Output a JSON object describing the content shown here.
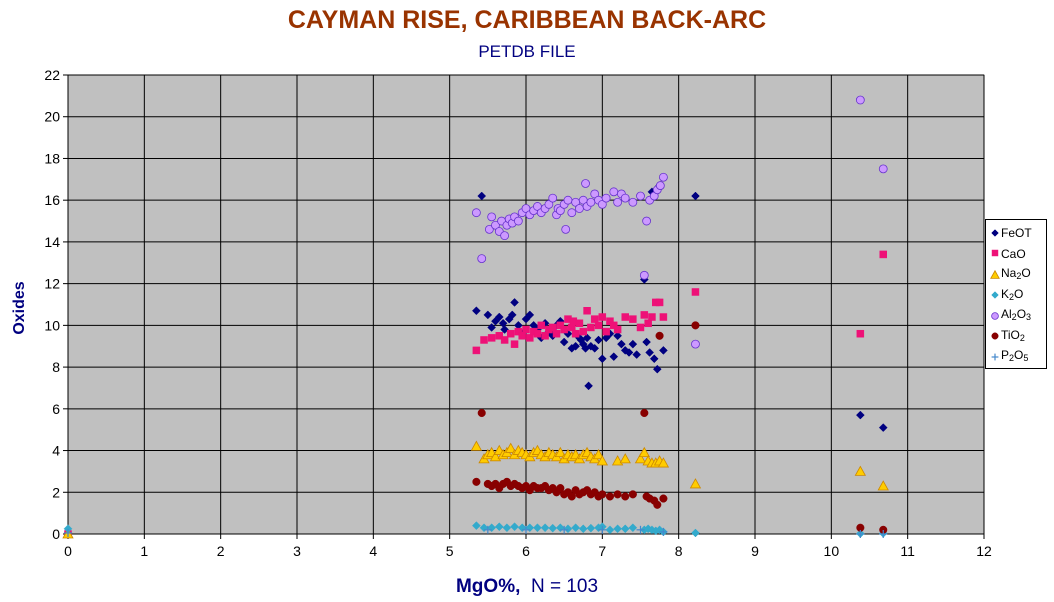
{
  "chart_data": {
    "type": "scatter",
    "title": "CAYMAN RISE, CARIBBEAN BACK-ARC",
    "subtitle": "PETDB FILE",
    "xlabel_main": "MgO%,",
    "xlabel_n": "N = 103",
    "ylabel": "Oxides",
    "xlim": [
      0,
      12
    ],
    "ylim": [
      0,
      22
    ],
    "xticks": [
      "0",
      "1",
      "2",
      "3",
      "4",
      "5",
      "6",
      "7",
      "8",
      "9",
      "10",
      "11",
      "12"
    ],
    "yticks": [
      "0",
      "2",
      "4",
      "6",
      "8",
      "10",
      "12",
      "14",
      "16",
      "18",
      "20",
      "22"
    ],
    "grid": true,
    "legend_position": "right",
    "series": [
      {
        "name": "FeOT",
        "label_parts": [
          "FeOT"
        ],
        "marker": "diamond",
        "color": "#000080",
        "points": [
          [
            0.0,
            0.05
          ],
          [
            5.35,
            10.7
          ],
          [
            5.42,
            16.2
          ],
          [
            5.5,
            10.5
          ],
          [
            5.55,
            9.9
          ],
          [
            5.6,
            10.2
          ],
          [
            5.65,
            10.4
          ],
          [
            5.7,
            10.1
          ],
          [
            5.72,
            9.8
          ],
          [
            5.78,
            10.3
          ],
          [
            5.82,
            10.5
          ],
          [
            5.85,
            11.1
          ],
          [
            5.9,
            10.0
          ],
          [
            5.95,
            9.6
          ],
          [
            6.0,
            10.3
          ],
          [
            6.05,
            10.5
          ],
          [
            6.1,
            10.0
          ],
          [
            6.15,
            9.8
          ],
          [
            6.2,
            9.4
          ],
          [
            6.25,
            10.1
          ],
          [
            6.3,
            9.7
          ],
          [
            6.35,
            9.5
          ],
          [
            6.4,
            10.0
          ],
          [
            6.45,
            10.2
          ],
          [
            6.5,
            9.2
          ],
          [
            6.55,
            9.6
          ],
          [
            6.6,
            8.9
          ],
          [
            6.65,
            9.0
          ],
          [
            6.7,
            9.4
          ],
          [
            6.72,
            9.3
          ],
          [
            6.75,
            9.1
          ],
          [
            6.78,
            8.9
          ],
          [
            6.8,
            9.4
          ],
          [
            6.82,
            7.1
          ],
          [
            6.85,
            9.0
          ],
          [
            6.9,
            8.9
          ],
          [
            6.95,
            9.3
          ],
          [
            7.0,
            8.4
          ],
          [
            7.05,
            9.4
          ],
          [
            7.1,
            9.6
          ],
          [
            7.15,
            8.5
          ],
          [
            7.2,
            9.5
          ],
          [
            7.25,
            9.1
          ],
          [
            7.3,
            8.8
          ],
          [
            7.35,
            8.7
          ],
          [
            7.4,
            9.1
          ],
          [
            7.45,
            8.6
          ],
          [
            7.55,
            12.2
          ],
          [
            7.58,
            9.2
          ],
          [
            7.62,
            8.7
          ],
          [
            7.65,
            16.4
          ],
          [
            7.68,
            8.4
          ],
          [
            7.72,
            7.9
          ],
          [
            7.75,
            16.7
          ],
          [
            7.8,
            8.8
          ],
          [
            8.22,
            16.2
          ],
          [
            10.38,
            5.7
          ],
          [
            10.68,
            5.1
          ]
        ]
      },
      {
        "name": "CaO",
        "label_parts": [
          "CaO"
        ],
        "marker": "square",
        "color": "#ee1177",
        "points": [
          [
            0.0,
            0.0
          ],
          [
            5.35,
            8.8
          ],
          [
            5.45,
            9.3
          ],
          [
            5.55,
            9.4
          ],
          [
            5.65,
            9.5
          ],
          [
            5.72,
            9.3
          ],
          [
            5.8,
            9.6
          ],
          [
            5.85,
            9.1
          ],
          [
            5.9,
            9.7
          ],
          [
            5.95,
            9.5
          ],
          [
            6.0,
            9.8
          ],
          [
            6.05,
            9.4
          ],
          [
            6.1,
            9.7
          ],
          [
            6.15,
            9.6
          ],
          [
            6.2,
            10.0
          ],
          [
            6.25,
            9.5
          ],
          [
            6.3,
            9.8
          ],
          [
            6.35,
            9.9
          ],
          [
            6.4,
            9.6
          ],
          [
            6.45,
            10.0
          ],
          [
            6.5,
            9.8
          ],
          [
            6.55,
            10.3
          ],
          [
            6.6,
            9.9
          ],
          [
            6.62,
            10.2
          ],
          [
            6.65,
            9.6
          ],
          [
            6.7,
            10.1
          ],
          [
            6.75,
            9.7
          ],
          [
            6.8,
            10.7
          ],
          [
            6.85,
            9.9
          ],
          [
            6.9,
            10.3
          ],
          [
            6.95,
            10.0
          ],
          [
            7.0,
            10.4
          ],
          [
            7.05,
            9.7
          ],
          [
            7.1,
            10.2
          ],
          [
            7.15,
            10.0
          ],
          [
            7.2,
            9.8
          ],
          [
            7.3,
            10.4
          ],
          [
            7.4,
            10.3
          ],
          [
            7.5,
            9.9
          ],
          [
            7.55,
            10.5
          ],
          [
            7.6,
            10.1
          ],
          [
            7.65,
            10.4
          ],
          [
            7.7,
            11.1
          ],
          [
            7.75,
            11.1
          ],
          [
            7.8,
            10.4
          ],
          [
            8.22,
            11.6
          ],
          [
            10.38,
            9.6
          ],
          [
            10.68,
            13.4
          ]
        ]
      },
      {
        "name": "Na2O",
        "label_parts": [
          "Na",
          "2",
          "O"
        ],
        "marker": "triangle",
        "color": "#ffcc00",
        "points": [
          [
            0.0,
            0.0
          ],
          [
            5.35,
            4.2
          ],
          [
            5.45,
            3.6
          ],
          [
            5.5,
            3.8
          ],
          [
            5.55,
            3.9
          ],
          [
            5.6,
            3.7
          ],
          [
            5.65,
            4.0
          ],
          [
            5.7,
            3.8
          ],
          [
            5.75,
            3.9
          ],
          [
            5.8,
            4.1
          ],
          [
            5.85,
            3.8
          ],
          [
            5.9,
            4.0
          ],
          [
            5.95,
            3.9
          ],
          [
            6.0,
            3.8
          ],
          [
            6.05,
            3.7
          ],
          [
            6.1,
            3.9
          ],
          [
            6.15,
            4.0
          ],
          [
            6.2,
            3.8
          ],
          [
            6.25,
            3.7
          ],
          [
            6.3,
            3.9
          ],
          [
            6.35,
            3.8
          ],
          [
            6.4,
            3.7
          ],
          [
            6.45,
            3.9
          ],
          [
            6.5,
            3.6
          ],
          [
            6.55,
            3.8
          ],
          [
            6.6,
            3.7
          ],
          [
            6.65,
            3.8
          ],
          [
            6.7,
            3.6
          ],
          [
            6.75,
            3.8
          ],
          [
            6.8,
            3.9
          ],
          [
            6.85,
            3.7
          ],
          [
            6.9,
            3.6
          ],
          [
            6.95,
            3.8
          ],
          [
            7.0,
            3.5
          ],
          [
            7.2,
            3.5
          ],
          [
            7.3,
            3.6
          ],
          [
            7.5,
            3.6
          ],
          [
            7.55,
            3.9
          ],
          [
            7.6,
            3.5
          ],
          [
            7.65,
            3.4
          ],
          [
            7.7,
            3.4
          ],
          [
            7.75,
            3.5
          ],
          [
            7.8,
            3.4
          ],
          [
            8.22,
            2.4
          ],
          [
            10.38,
            3.0
          ],
          [
            10.68,
            2.3
          ]
        ]
      },
      {
        "name": "K2O",
        "label_parts": [
          "K",
          "2",
          "O"
        ],
        "marker": "diamond",
        "color": "#33aacc",
        "points": [
          [
            0.0,
            0.25
          ],
          [
            5.35,
            0.4
          ],
          [
            5.45,
            0.3
          ],
          [
            5.55,
            0.3
          ],
          [
            5.65,
            0.35
          ],
          [
            5.75,
            0.3
          ],
          [
            5.85,
            0.35
          ],
          [
            5.95,
            0.3
          ],
          [
            6.05,
            0.3
          ],
          [
            6.15,
            0.3
          ],
          [
            6.25,
            0.3
          ],
          [
            6.35,
            0.28
          ],
          [
            6.45,
            0.3
          ],
          [
            6.55,
            0.25
          ],
          [
            6.65,
            0.3
          ],
          [
            6.75,
            0.25
          ],
          [
            6.85,
            0.28
          ],
          [
            6.95,
            0.3
          ],
          [
            7.0,
            0.35
          ],
          [
            7.1,
            0.2
          ],
          [
            7.2,
            0.25
          ],
          [
            7.3,
            0.25
          ],
          [
            7.4,
            0.3
          ],
          [
            7.55,
            0.2
          ],
          [
            7.6,
            0.25
          ],
          [
            7.65,
            0.2
          ],
          [
            7.7,
            0.15
          ],
          [
            7.75,
            0.2
          ],
          [
            7.8,
            0.1
          ],
          [
            8.22,
            0.05
          ],
          [
            10.38,
            0.02
          ],
          [
            10.68,
            0.03
          ]
        ]
      },
      {
        "name": "Al2O3",
        "label_parts": [
          "Al",
          "2",
          "O",
          "3"
        ],
        "marker": "circle-open",
        "color": "#cc99ff",
        "points": [
          [
            5.35,
            15.4
          ],
          [
            5.42,
            13.2
          ],
          [
            5.52,
            14.6
          ],
          [
            5.55,
            15.2
          ],
          [
            5.6,
            14.8
          ],
          [
            5.65,
            14.5
          ],
          [
            5.68,
            15.0
          ],
          [
            5.72,
            14.3
          ],
          [
            5.75,
            14.8
          ],
          [
            5.78,
            15.1
          ],
          [
            5.82,
            14.9
          ],
          [
            5.85,
            15.2
          ],
          [
            5.9,
            15.0
          ],
          [
            5.95,
            15.4
          ],
          [
            6.0,
            15.6
          ],
          [
            6.05,
            15.3
          ],
          [
            6.1,
            15.5
          ],
          [
            6.15,
            15.7
          ],
          [
            6.2,
            15.4
          ],
          [
            6.25,
            15.6
          ],
          [
            6.3,
            15.8
          ],
          [
            6.35,
            16.1
          ],
          [
            6.4,
            15.3
          ],
          [
            6.42,
            15.6
          ],
          [
            6.45,
            15.5
          ],
          [
            6.5,
            15.8
          ],
          [
            6.52,
            14.6
          ],
          [
            6.55,
            16.0
          ],
          [
            6.6,
            15.4
          ],
          [
            6.65,
            15.9
          ],
          [
            6.7,
            15.6
          ],
          [
            6.75,
            16.0
          ],
          [
            6.78,
            16.8
          ],
          [
            6.8,
            15.7
          ],
          [
            6.85,
            15.9
          ],
          [
            6.9,
            16.3
          ],
          [
            6.95,
            16.0
          ],
          [
            7.0,
            15.8
          ],
          [
            7.05,
            16.1
          ],
          [
            7.15,
            16.4
          ],
          [
            7.2,
            15.9
          ],
          [
            7.25,
            16.3
          ],
          [
            7.3,
            16.1
          ],
          [
            7.4,
            15.9
          ],
          [
            7.5,
            16.2
          ],
          [
            7.55,
            12.4
          ],
          [
            7.58,
            15.0
          ],
          [
            7.62,
            16.0
          ],
          [
            7.68,
            16.2
          ],
          [
            7.72,
            16.5
          ],
          [
            7.76,
            16.7
          ],
          [
            7.8,
            17.1
          ],
          [
            8.22,
            9.1
          ],
          [
            10.38,
            20.8
          ],
          [
            10.68,
            17.5
          ]
        ]
      },
      {
        "name": "TiO2",
        "label_parts": [
          "TiO",
          "2"
        ],
        "marker": "circle",
        "color": "#880000",
        "points": [
          [
            5.35,
            2.5
          ],
          [
            5.42,
            5.8
          ],
          [
            5.5,
            2.4
          ],
          [
            5.55,
            2.3
          ],
          [
            5.6,
            2.4
          ],
          [
            5.65,
            2.2
          ],
          [
            5.7,
            2.4
          ],
          [
            5.75,
            2.5
          ],
          [
            5.8,
            2.3
          ],
          [
            5.85,
            2.4
          ],
          [
            5.9,
            2.3
          ],
          [
            5.95,
            2.2
          ],
          [
            6.0,
            2.3
          ],
          [
            6.05,
            2.1
          ],
          [
            6.1,
            2.3
          ],
          [
            6.15,
            2.2
          ],
          [
            6.2,
            2.2
          ],
          [
            6.25,
            2.3
          ],
          [
            6.3,
            2.1
          ],
          [
            6.35,
            2.2
          ],
          [
            6.4,
            2.0
          ],
          [
            6.45,
            2.2
          ],
          [
            6.5,
            1.9
          ],
          [
            6.55,
            2.0
          ],
          [
            6.6,
            1.8
          ],
          [
            6.65,
            2.1
          ],
          [
            6.7,
            1.9
          ],
          [
            6.75,
            2.0
          ],
          [
            6.8,
            2.1
          ],
          [
            6.85,
            1.9
          ],
          [
            6.9,
            2.0
          ],
          [
            6.95,
            1.8
          ],
          [
            7.0,
            1.9
          ],
          [
            7.1,
            1.8
          ],
          [
            7.2,
            1.9
          ],
          [
            7.3,
            1.8
          ],
          [
            7.4,
            1.9
          ],
          [
            7.55,
            5.8
          ],
          [
            7.58,
            1.8
          ],
          [
            7.62,
            1.7
          ],
          [
            7.68,
            1.6
          ],
          [
            7.72,
            1.4
          ],
          [
            7.75,
            9.5
          ],
          [
            7.8,
            1.7
          ],
          [
            8.22,
            10.0
          ],
          [
            10.38,
            0.3
          ],
          [
            10.68,
            0.2
          ]
        ]
      },
      {
        "name": "P2O5",
        "label_parts": [
          "P",
          "2",
          "O",
          "5"
        ],
        "marker": "plus",
        "color": "#4488cc",
        "points": [
          [
            0.0,
            0.05
          ],
          [
            5.5,
            0.2
          ],
          [
            6.0,
            0.2
          ],
          [
            6.5,
            0.2
          ],
          [
            7.0,
            0.2
          ],
          [
            7.5,
            0.2
          ],
          [
            7.8,
            0.1
          ],
          [
            10.38,
            0.0
          ],
          [
            10.68,
            0.0
          ]
        ]
      }
    ]
  }
}
